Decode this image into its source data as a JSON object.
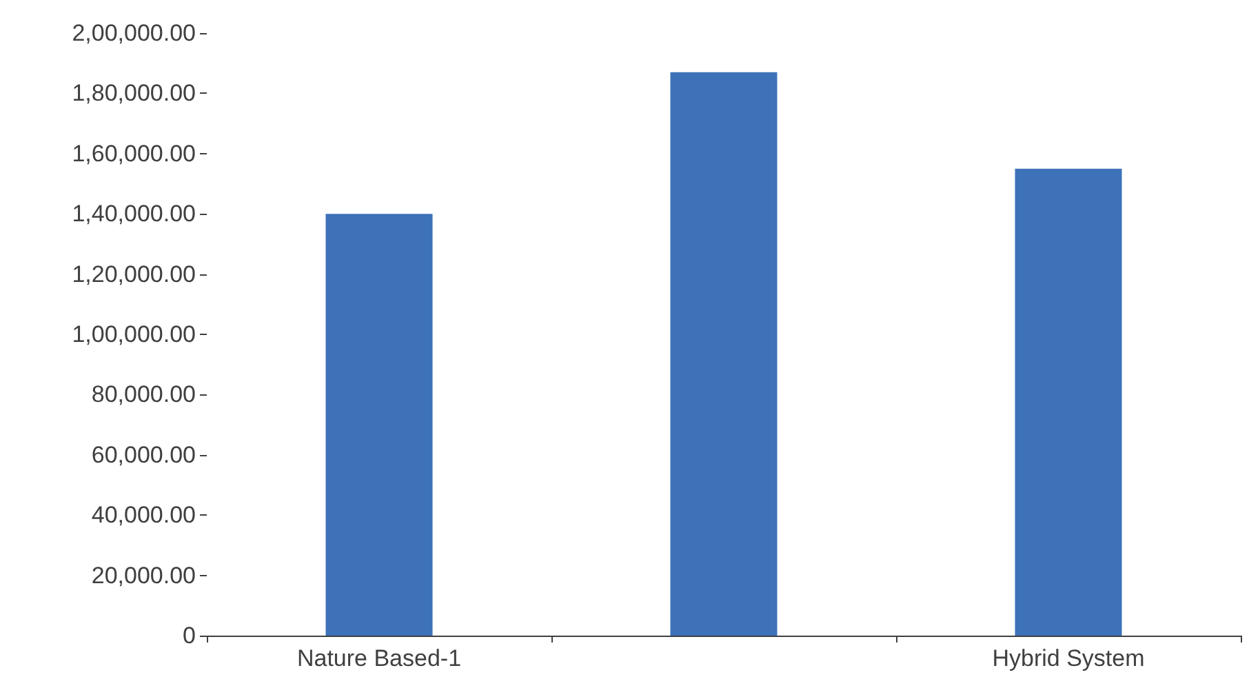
{
  "chart_data": {
    "type": "bar",
    "categories": [
      "Nature Based-1",
      null,
      "Hybrid System"
    ],
    "values": [
      140000,
      187000,
      155000
    ],
    "color": "#3d72b9",
    "ylim": [
      0,
      200000
    ],
    "yticks": [
      {
        "value": 0,
        "label": "0"
      },
      {
        "value": 20000,
        "label": "20,000.00"
      },
      {
        "value": 40000,
        "label": "40,000.00"
      },
      {
        "value": 60000,
        "label": "60,000.00"
      },
      {
        "value": 80000,
        "label": "80,000.00"
      },
      {
        "value": 100000,
        "label": "1,00,000.00"
      },
      {
        "value": 120000,
        "label": "1,20,000.00"
      },
      {
        "value": 140000,
        "label": "1,40,000.00"
      },
      {
        "value": 160000,
        "label": "1,60,000.00"
      },
      {
        "value": 180000,
        "label": "1,80,000.00"
      },
      {
        "value": 200000,
        "label": "2,00,000.00"
      }
    ],
    "grid": false
  }
}
